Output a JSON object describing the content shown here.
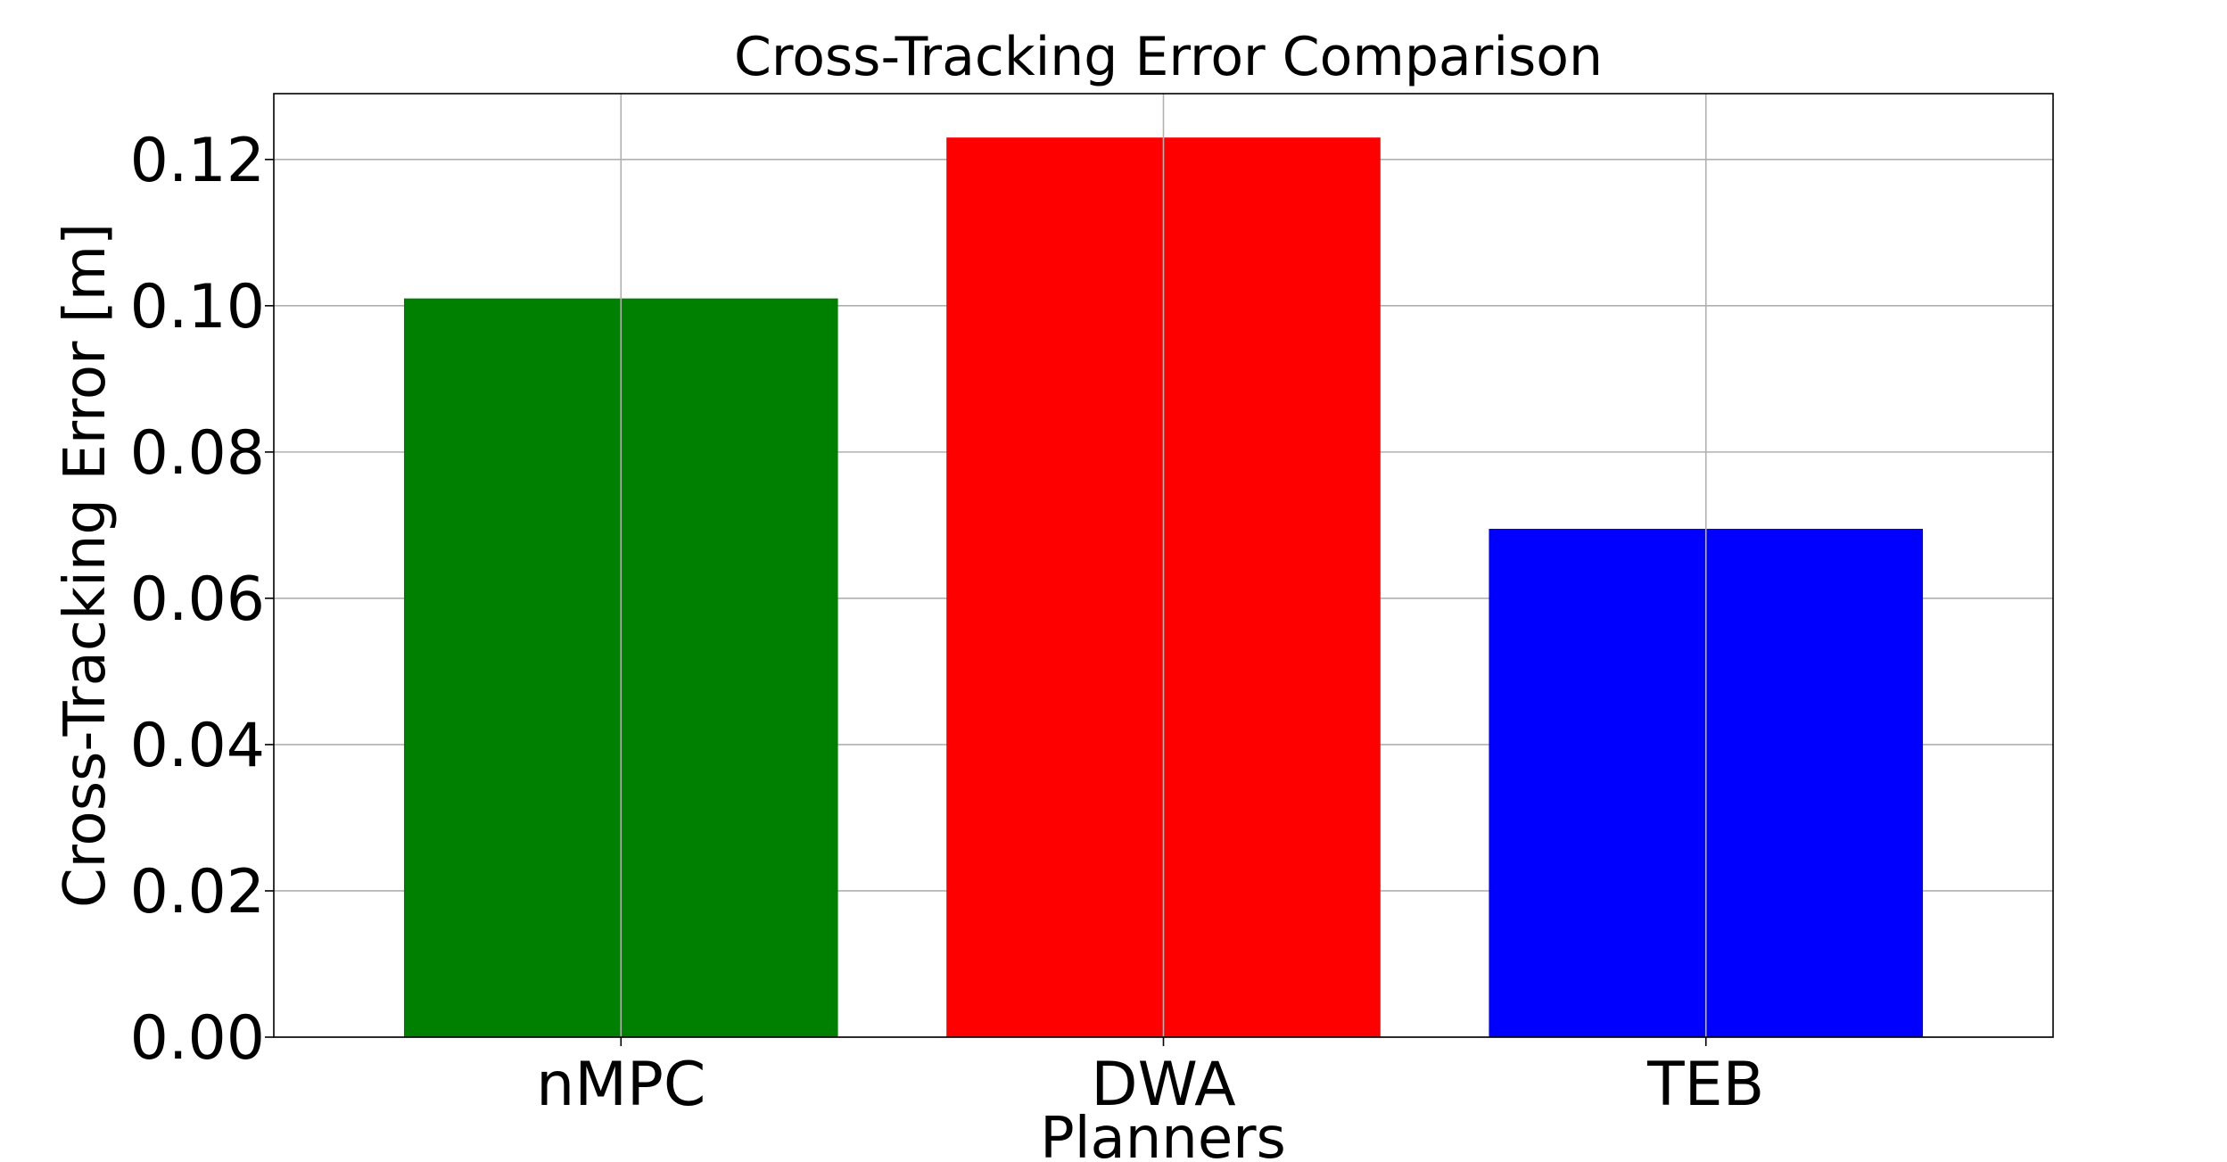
{
  "chart_data": {
    "type": "bar",
    "title": "Cross-Tracking Error Comparison",
    "xlabel": "Planners",
    "ylabel": "Cross-Tracking Error [m]",
    "categories": [
      "nMPC",
      "DWA",
      "TEB"
    ],
    "values": [
      0.101,
      0.123,
      0.0695
    ],
    "colors": [
      "#008000",
      "#ff0000",
      "#0000ff"
    ],
    "ylim": [
      0,
      0.129
    ],
    "yticks": [
      0.0,
      0.02,
      0.04,
      0.06,
      0.08,
      0.1,
      0.12
    ],
    "ytick_labels": [
      "0.00",
      "0.02",
      "0.04",
      "0.06",
      "0.08",
      "0.10",
      "0.12"
    ],
    "grid": true,
    "legend": "none"
  }
}
